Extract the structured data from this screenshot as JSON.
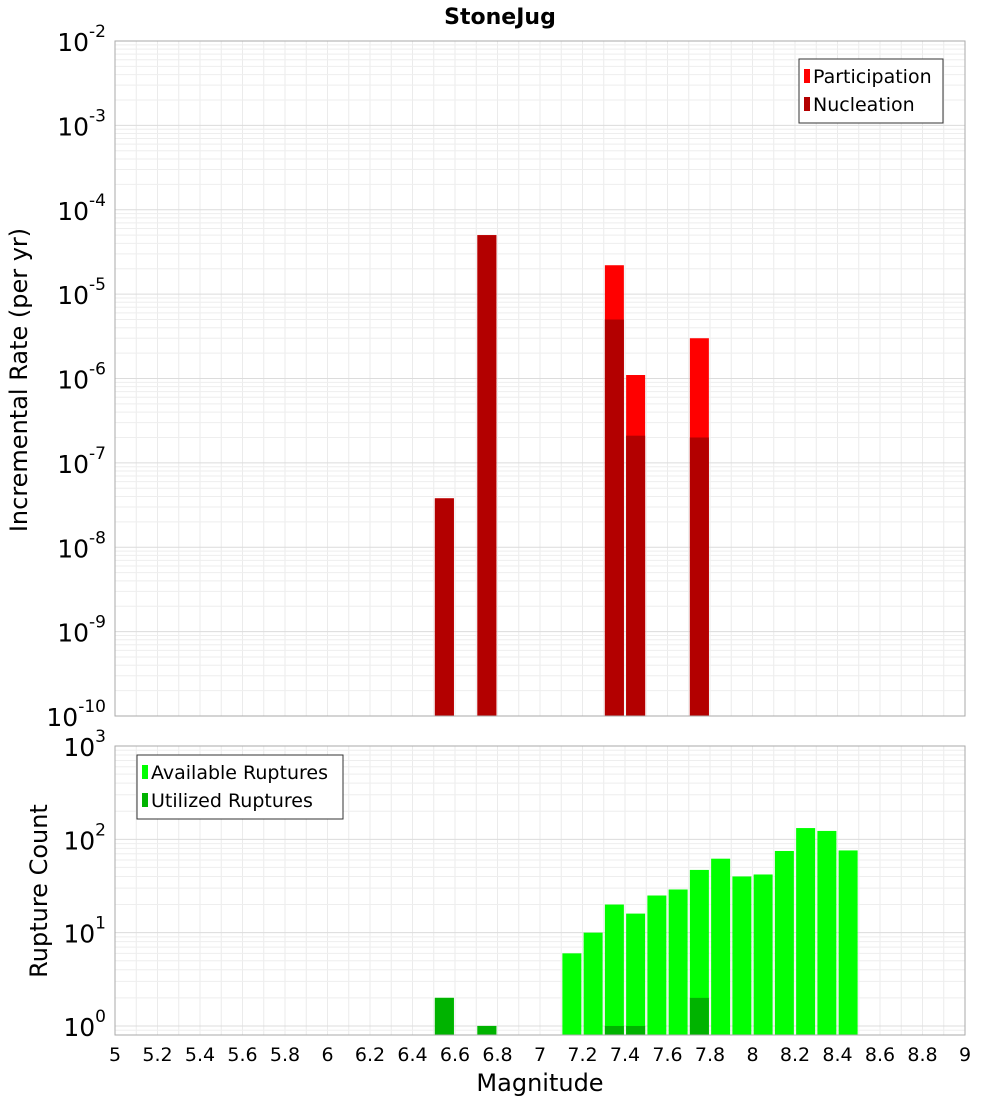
{
  "chart_data": [
    {
      "type": "bar",
      "title": "StoneJug",
      "ylabel": "Incremental Rate (per yr)",
      "xlabel": "",
      "yscale": "log",
      "ylim": [
        1e-10,
        0.01
      ],
      "xlim": [
        5,
        9
      ],
      "grid": true,
      "legend_position": "top-right",
      "x": [
        6.55,
        6.75,
        7.35,
        7.45,
        7.75
      ],
      "series": [
        {
          "name": "Participation",
          "color": "#ff0000",
          "values": [
            3.8e-08,
            5e-05,
            2.2e-05,
            1.1e-06,
            3e-06
          ]
        },
        {
          "name": "Nucleation",
          "color": "#b30000",
          "values": [
            3.8e-08,
            5e-05,
            5e-06,
            2.1e-07,
            2e-07
          ]
        }
      ],
      "ytick_labels": [
        {
          "value": 0.01,
          "base": "10",
          "exp": "-2"
        },
        {
          "value": 0.001,
          "base": "10",
          "exp": "-3"
        },
        {
          "value": 0.0001,
          "base": "10",
          "exp": "-4"
        },
        {
          "value": 1e-05,
          "base": "10",
          "exp": "-5"
        },
        {
          "value": 1e-06,
          "base": "10",
          "exp": "-6"
        },
        {
          "value": 1e-07,
          "base": "10",
          "exp": "-7"
        },
        {
          "value": 1e-08,
          "base": "10",
          "exp": "-8"
        },
        {
          "value": 1e-09,
          "base": "10",
          "exp": "-9"
        },
        {
          "value": 1e-10,
          "base": "10",
          "exp": "-10"
        }
      ]
    },
    {
      "type": "bar",
      "title": "",
      "ylabel": "Rupture Count",
      "xlabel": "Magnitude",
      "yscale": "log",
      "ylim": [
        0.8,
        1000
      ],
      "xlim": [
        5,
        9
      ],
      "grid": true,
      "legend_position": "top-left",
      "x": [
        6.55,
        6.75,
        7.15,
        7.25,
        7.35,
        7.45,
        7.55,
        7.65,
        7.75,
        7.85,
        7.95,
        8.05,
        8.15,
        8.25,
        8.35,
        8.45
      ],
      "series": [
        {
          "name": "Available Ruptures",
          "color": "#00ff00",
          "values": [
            2,
            1,
            6,
            10,
            20,
            16,
            25,
            29,
            47,
            62,
            40,
            42,
            75,
            132,
            123,
            76
          ]
        },
        {
          "name": "Utilized Ruptures",
          "color": "#00b300",
          "values": [
            2,
            1,
            0,
            0,
            1,
            1,
            0,
            0,
            2,
            0,
            0,
            0,
            0,
            0,
            0,
            0
          ]
        }
      ],
      "ytick_labels": [
        {
          "value": 1000,
          "base": "10",
          "exp": "3"
        },
        {
          "value": 100,
          "base": "10",
          "exp": "2"
        },
        {
          "value": 10,
          "base": "10",
          "exp": "1"
        },
        {
          "value": 1,
          "base": "10",
          "exp": "0"
        }
      ],
      "xticks": [
        5,
        5.2,
        5.4,
        5.6,
        5.8,
        6,
        6.2,
        6.4,
        6.6,
        6.8,
        7,
        7.2,
        7.4,
        7.6,
        7.8,
        8,
        8.2,
        8.4,
        8.6,
        8.8,
        9
      ],
      "xtick_labels": [
        "5",
        "5.2",
        "5.4",
        "5.6",
        "5.8",
        "6",
        "6.2",
        "6.4",
        "6.6",
        "6.8",
        "7",
        "7.2",
        "7.4",
        "7.6",
        "7.8",
        "8",
        "8.2",
        "8.4",
        "8.6",
        "8.8",
        "9"
      ]
    }
  ]
}
